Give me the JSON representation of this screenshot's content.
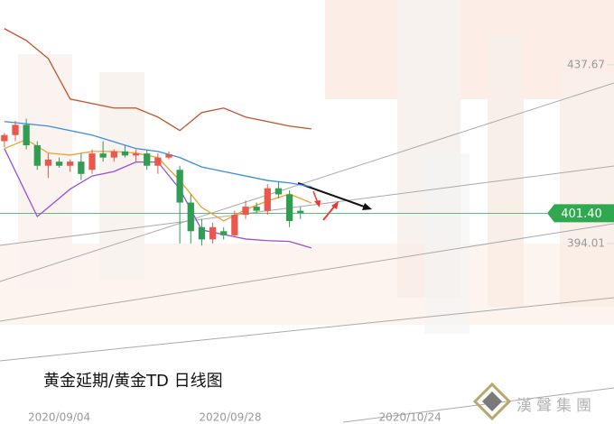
{
  "chart_data": {
    "type": "candlestick",
    "caption": "黄金延期/黄金TD 日线图",
    "logo_text": "漢聲集團",
    "x": [
      0,
      1,
      2,
      3,
      4,
      5,
      6,
      7,
      8,
      9,
      10,
      11,
      12,
      13,
      14,
      15,
      16,
      17,
      18,
      19,
      20,
      21,
      22,
      23,
      24,
      25,
      26,
      27
    ],
    "open": [
      419,
      420.5,
      423,
      418,
      413,
      414,
      413,
      414,
      412,
      416,
      415,
      416.5,
      415.5,
      416,
      413,
      415,
      412,
      404,
      398,
      395,
      397,
      396,
      401,
      403,
      402,
      407.5,
      406,
      402
    ],
    "high": [
      421,
      424,
      424.5,
      419,
      416,
      415,
      414.5,
      416,
      417,
      419,
      417,
      418,
      417,
      417,
      416,
      416.5,
      413,
      406,
      400,
      399,
      398,
      402,
      404.5,
      404,
      408.5,
      409,
      407,
      403
    ],
    "low": [
      417.5,
      419,
      417,
      412,
      410,
      412.5,
      411.5,
      409.5,
      411,
      414,
      414,
      415,
      414,
      412,
      411,
      414.5,
      394,
      394,
      393.5,
      394,
      395,
      395.5,
      400,
      401.5,
      401,
      405,
      398,
      400
    ],
    "close": [
      420.5,
      423,
      418,
      413,
      414.5,
      413,
      414,
      411,
      416,
      415,
      416.5,
      415.5,
      416,
      413,
      415,
      415.8,
      404,
      397,
      395,
      398,
      396,
      401,
      403,
      402,
      407.5,
      406,
      399.5,
      401.4
    ],
    "up_color": "#e8584c",
    "down_color": "#2f9e52",
    "lines": [
      {
        "color": "#c0522a",
        "x": [
          0,
          2,
          4,
          6,
          8,
          10,
          12,
          14,
          16,
          18,
          20,
          22,
          24,
          26,
          28
        ],
        "values": [
          446.5,
          443.6,
          439.2,
          429.3,
          428.2,
          427.1,
          427.1,
          424.9,
          421.6,
          426,
          427.1,
          424.9,
          423.8,
          422.7,
          422.0
        ]
      },
      {
        "color": "#3b8de0",
        "x": [
          0,
          4,
          8,
          12,
          14,
          16,
          18,
          20,
          22,
          24,
          26,
          28
        ],
        "values": [
          423.8,
          422.7,
          420.5,
          417.2,
          416.5,
          415,
          412.7,
          411.6,
          410.5,
          409.4,
          408.8,
          407.9
        ]
      },
      {
        "color": "#9b4fd6",
        "x": [
          0,
          3,
          4,
          6,
          8,
          10,
          12,
          14,
          16,
          18,
          20,
          22,
          24,
          26,
          28
        ],
        "values": [
          417.2,
          400.6,
          402.8,
          407.3,
          410.5,
          411.6,
          413.9,
          413.9,
          407.3,
          397.3,
          396.2,
          395.1,
          394.7,
          394.5,
          392.9
        ]
      },
      {
        "color": "#f0a030",
        "x": [
          0,
          2,
          4,
          6,
          8,
          10,
          12,
          14,
          16,
          18,
          20,
          22,
          24,
          26,
          28
        ],
        "values": [
          417.2,
          419.4,
          416.1,
          415.6,
          416.5,
          416.5,
          416.1,
          415,
          409.4,
          402.8,
          399.5,
          402.3,
          404.4,
          406.1,
          403.9
        ]
      }
    ],
    "xlim": [
      -0.4,
      55.6
    ],
    "ylim": [
      353.2,
      453.5
    ],
    "xticks": [
      {
        "value": 5,
        "label": "2020/09/04"
      },
      {
        "value": 20.6,
        "label": "2020/09/28"
      },
      {
        "value": 37,
        "label": "2020/10/24"
      }
    ],
    "yticks": [
      437.67,
      394.01
    ],
    "last_price": {
      "value": 401.4,
      "label": "401.40"
    },
    "last_price_color": "#2fa84f"
  }
}
